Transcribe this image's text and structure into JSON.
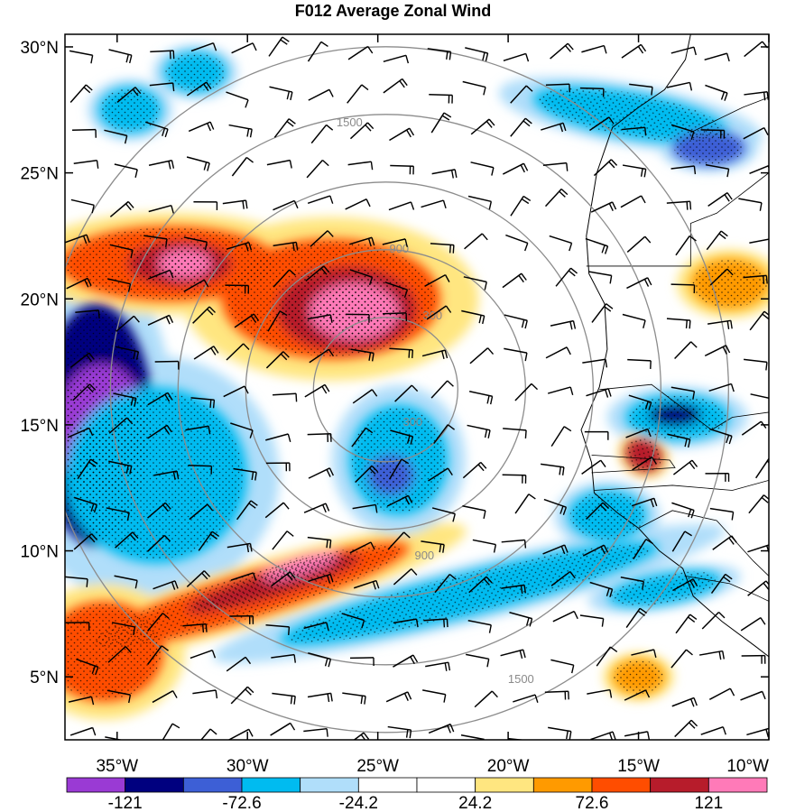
{
  "title": "F012 Average Zonal Wind",
  "map": {
    "lat_range": [
      2.5,
      30.5
    ],
    "lon_range": [
      -37,
      -10
    ],
    "lat_ticks": [
      {
        "value": 30,
        "label": "30°N"
      },
      {
        "value": 25,
        "label": "25°N"
      },
      {
        "value": 20,
        "label": "20°N"
      },
      {
        "value": 15,
        "label": "15°N"
      },
      {
        "value": 10,
        "label": "10°N"
      },
      {
        "value": 5,
        "label": "5°N"
      }
    ],
    "lon_ticks": [
      {
        "value": -35,
        "label": "35°W"
      },
      {
        "value": -30,
        "label": "30°W"
      },
      {
        "value": -25,
        "label": "25°W"
      },
      {
        "value": -20,
        "label": "20°W"
      },
      {
        "value": -15,
        "label": "15°W"
      },
      {
        "value": -10,
        "label": "10°W"
      }
    ],
    "range_rings": {
      "center_lon": -24.7,
      "center_lat": 16.4,
      "labels": [
        "300",
        "900",
        "1500"
      ],
      "color": "#8c8c8c"
    },
    "colorbar": {
      "colors": [
        "#9a3ad4",
        "#00007f",
        "#3d5fd6",
        "#00bbf0",
        "#b0defa",
        "#ffffff",
        "#ffffff",
        "#ffe680",
        "#ff9a00",
        "#ff4d00",
        "#b71c2b",
        "#ff7ab8"
      ],
      "labels": [
        {
          "value": -121,
          "text": "-121"
        },
        {
          "value": -72.6,
          "text": "-72.6"
        },
        {
          "value": -24.2,
          "text": "-24.2"
        },
        {
          "value": 24.2,
          "text": "24.2"
        },
        {
          "value": 72.6,
          "text": "72.6"
        },
        {
          "value": 121,
          "text": "121"
        }
      ]
    },
    "blobs": [
      {
        "lon": -35.8,
        "lat": 15.0,
        "rx": 2.2,
        "ry": 4.8,
        "level": 1,
        "rot": 0
      },
      {
        "lon": -35.6,
        "lat": 14.8,
        "rx": 1.8,
        "ry": 2.6,
        "level": 0,
        "rot": 0
      },
      {
        "lon": -33.5,
        "lat": 13.0,
        "rx": 3.5,
        "ry": 3.5,
        "level": 3,
        "rot": 0
      },
      {
        "lon": -26.8,
        "lat": 20.0,
        "rx": 4.2,
        "ry": 2.4,
        "level": 9,
        "rot": 0
      },
      {
        "lon": -26.2,
        "lat": 19.6,
        "rx": 2.7,
        "ry": 1.7,
        "level": 10,
        "rot": 0
      },
      {
        "lon": -25.9,
        "lat": 19.5,
        "rx": 1.7,
        "ry": 1.1,
        "level": 11,
        "rot": 0
      },
      {
        "lon": -33.0,
        "lat": 21.4,
        "rx": 4.2,
        "ry": 1.5,
        "level": 9,
        "rot": 0
      },
      {
        "lon": -32.6,
        "lat": 21.4,
        "rx": 2.0,
        "ry": 0.9,
        "level": 10,
        "rot": 0
      },
      {
        "lon": -32.4,
        "lat": 21.4,
        "rx": 1.0,
        "ry": 0.55,
        "level": 11,
        "rot": 0
      },
      {
        "lon": -30.0,
        "lat": 8.2,
        "rx": 6.5,
        "ry": 0.9,
        "level": 9,
        "rot": -17
      },
      {
        "lon": -29.0,
        "lat": 8.7,
        "rx": 3.5,
        "ry": 0.5,
        "level": 10,
        "rot": -17
      },
      {
        "lon": -28.0,
        "lat": 9.4,
        "rx": 1.5,
        "ry": 0.35,
        "level": 11,
        "rot": -17
      },
      {
        "lon": -35.5,
        "lat": 6.0,
        "rx": 2.3,
        "ry": 2.0,
        "level": 9,
        "rot": 0
      },
      {
        "lon": -24.2,
        "lat": 13.6,
        "rx": 1.9,
        "ry": 2.2,
        "level": 3,
        "rot": 0
      },
      {
        "lon": -24.5,
        "lat": 13.0,
        "rx": 0.9,
        "ry": 0.8,
        "level": 2,
        "rot": 0
      },
      {
        "lon": -21.5,
        "lat": 8.3,
        "rx": 7.5,
        "ry": 0.85,
        "level": 3,
        "rot": -14
      },
      {
        "lon": -15.3,
        "lat": 27.3,
        "rx": 3.8,
        "ry": 0.9,
        "level": 3,
        "rot": 10
      },
      {
        "lon": -12.3,
        "lat": 26.0,
        "rx": 1.4,
        "ry": 0.7,
        "level": 2,
        "rot": 0
      },
      {
        "lon": -13.5,
        "lat": 15.3,
        "rx": 2.0,
        "ry": 0.9,
        "level": 3,
        "rot": 0
      },
      {
        "lon": -13.6,
        "lat": 15.4,
        "rx": 1.0,
        "ry": 0.45,
        "level": 1,
        "rot": 0
      },
      {
        "lon": -14.8,
        "lat": 13.8,
        "rx": 0.75,
        "ry": 0.65,
        "level": 10,
        "rot": 30
      },
      {
        "lon": -11.5,
        "lat": 20.6,
        "rx": 1.5,
        "ry": 1.0,
        "level": 8,
        "rot": 0
      },
      {
        "lon": -15.0,
        "lat": 5.0,
        "rx": 1.0,
        "ry": 0.7,
        "level": 8,
        "rot": 0
      },
      {
        "lon": -16.2,
        "lat": 11.4,
        "rx": 1.5,
        "ry": 1.0,
        "level": 3,
        "rot": 0
      },
      {
        "lon": -14.0,
        "lat": 8.5,
        "rx": 2.2,
        "ry": 0.6,
        "level": 3,
        "rot": -10
      },
      {
        "lon": -34.5,
        "lat": 27.5,
        "rx": 1.2,
        "ry": 0.9,
        "level": 3,
        "rot": 0
      },
      {
        "lon": -32.0,
        "lat": 29.0,
        "rx": 1.2,
        "ry": 0.8,
        "level": 3,
        "rot": 0
      }
    ]
  }
}
